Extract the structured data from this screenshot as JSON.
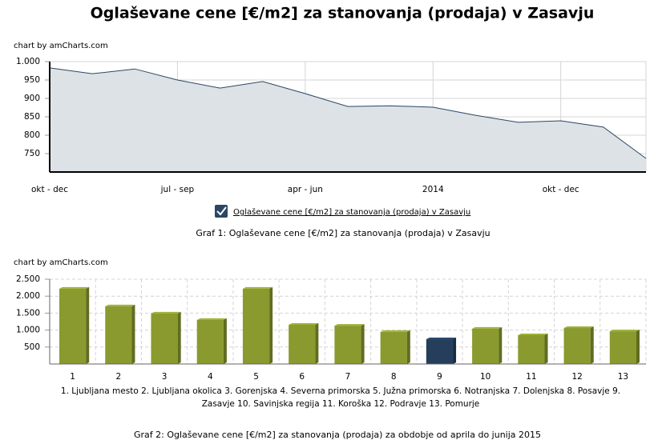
{
  "title": "Oglaševane cene [€/m2] za stanovanja (prodaja) v Zasavju",
  "chart_data": [
    {
      "type": "area",
      "credit": "chart by amCharts.com",
      "categories": [
        "okt - dec",
        null,
        null,
        "jul - sep",
        null,
        null,
        "apr - jun",
        null,
        null,
        "2014",
        null,
        null,
        "okt - dec",
        null,
        null
      ],
      "series": [
        {
          "name": "Oglaševane cene [€/m2] za stanovanja (prodaja) v Zasavju",
          "color": "#2b4763",
          "fill_color": "#dde2e7",
          "values": [
            983,
            967,
            980,
            950,
            928,
            946,
            913,
            878,
            880,
            876,
            854,
            835,
            839,
            822,
            737
          ]
        }
      ],
      "ylim": [
        700,
        1000
      ],
      "yticks": [
        750,
        800,
        850,
        900,
        950,
        {
          "value": 1000,
          "label": "1.000"
        }
      ],
      "grid": true,
      "caption": "Graf 1: Oglaševane cene [€/m2] za stanovanja (prodaja) v Zasavju"
    },
    {
      "type": "bar",
      "credit": "chart by amCharts.com",
      "categories": [
        "1",
        "2",
        "3",
        "4",
        "5",
        "6",
        "7",
        "8",
        "9",
        "10",
        "11",
        "12",
        "13"
      ],
      "values": [
        2220,
        1700,
        1490,
        1300,
        2220,
        1155,
        1130,
        945,
        730,
        1040,
        850,
        1060,
        965
      ],
      "colors": [
        "#8a9a2e",
        "#8a9a2e",
        "#8a9a2e",
        "#8a9a2e",
        "#8a9a2e",
        "#8a9a2e",
        "#8a9a2e",
        "#8a9a2e",
        "#243e5c",
        "#8a9a2e",
        "#8a9a2e",
        "#8a9a2e",
        "#8a9a2e"
      ],
      "ylim": [
        0,
        2500
      ],
      "yticks": [
        500,
        {
          "value": 1000,
          "label": "1.000"
        },
        {
          "value": 1500,
          "label": "1.500"
        },
        {
          "value": 2000,
          "label": "2.000"
        },
        {
          "value": 2500,
          "label": "2.500"
        }
      ],
      "grid": true,
      "key": [
        {
          "number": "1.",
          "name": "Ljubljana mesto"
        },
        {
          "number": "2.",
          "name": "Ljubljana okolica"
        },
        {
          "number": "3.",
          "name": "Gorenjska"
        },
        {
          "number": "4.",
          "name": "Severna primorska"
        },
        {
          "number": "5.",
          "name": "Južna primorska"
        },
        {
          "number": "6.",
          "name": "Notranjska"
        },
        {
          "number": "7.",
          "name": "Dolenjska"
        },
        {
          "number": "8.",
          "name": "Posavje"
        },
        {
          "number": "9.",
          "name": "Zasavje"
        },
        {
          "number": "10.",
          "name": "Savinjska regija"
        },
        {
          "number": "11.",
          "name": "Koroška"
        },
        {
          "number": "12.",
          "name": "Podravje"
        },
        {
          "number": "13.",
          "name": "Pomurje"
        }
      ],
      "caption": "Graf 2: Oglaševane cene [€/m2] za stanovanja (prodaja) za obdobje od aprila do junija 2015"
    }
  ]
}
